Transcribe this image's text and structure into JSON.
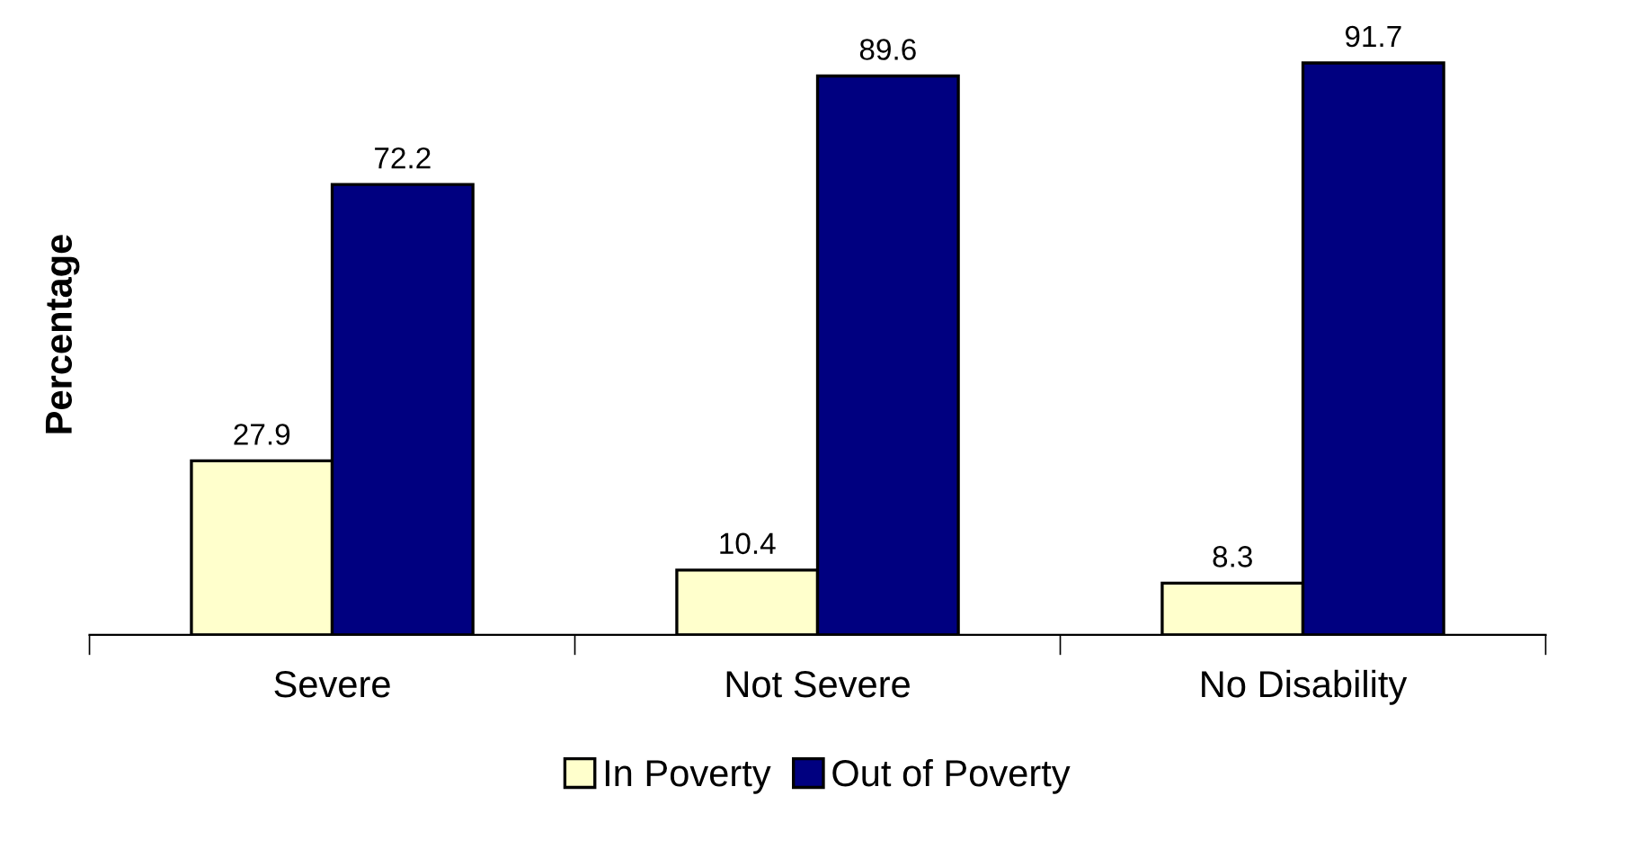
{
  "chart_data": {
    "type": "bar",
    "ylabel": "Percentage",
    "categories": [
      "Severe",
      "Not Severe",
      "No Disability"
    ],
    "series": [
      {
        "name": "In Poverty",
        "color": "#ffffcc",
        "values": [
          27.9,
          10.4,
          8.3
        ]
      },
      {
        "name": "Out of Poverty",
        "color": "#000080",
        "values": [
          72.2,
          89.6,
          91.7
        ]
      }
    ],
    "data_labels": true,
    "legend": "bottom",
    "grid": false
  }
}
